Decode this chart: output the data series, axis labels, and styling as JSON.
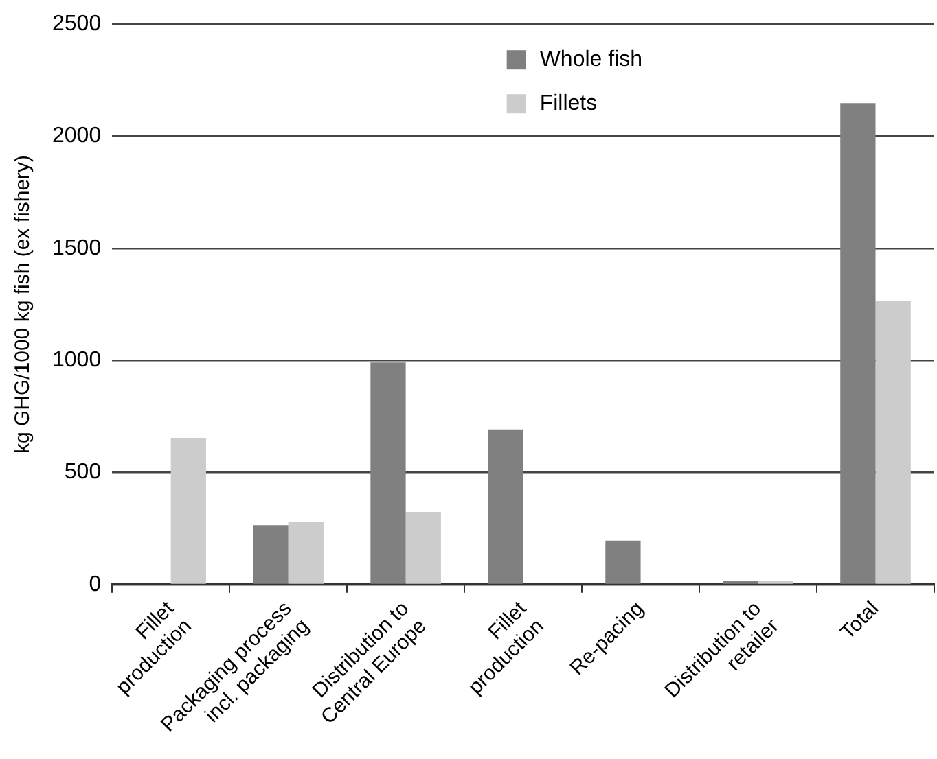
{
  "chart_data": {
    "type": "bar",
    "ylabel": "kg GHG/1000 kg fish (ex fishery)",
    "categories": [
      "Fillet\nproduction",
      "Packaging process\nincl. packaging",
      "Distribution to\nCentral Europe",
      "Fillet\nproduction",
      "Re-pacing",
      "Distribution to\nretailer",
      "Total"
    ],
    "series": [
      {
        "name": "Whole fish",
        "color": "#808080",
        "values": [
          null,
          265,
          991,
          692,
          196,
          18,
          2148
        ]
      },
      {
        "name": "Fillets",
        "color": "#cccccc",
        "values": [
          655,
          279,
          324,
          null,
          null,
          16,
          1265
        ]
      }
    ],
    "ylim": [
      0,
      2500
    ],
    "yticks": [
      0,
      500,
      1000,
      1500,
      2000,
      2500
    ],
    "grid": "y",
    "legend": "top"
  }
}
